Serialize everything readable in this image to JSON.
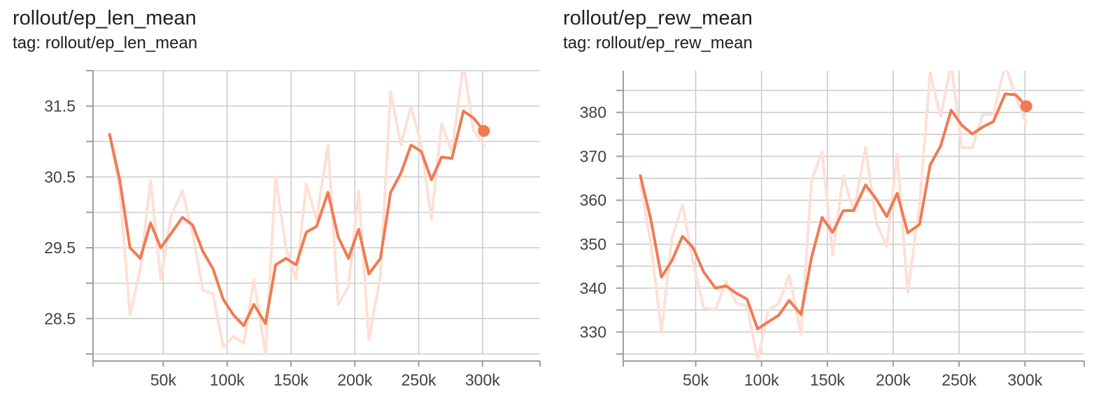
{
  "chart_data": [
    {
      "type": "line",
      "title": "rollout/ep_len_mean",
      "subtitle": "tag: rollout/ep_len_mean",
      "xlabel": "",
      "ylabel": "",
      "xlim": [
        -5000,
        345000
      ],
      "ylim": [
        28.0,
        32.0
      ],
      "x_ticks": [
        50000,
        100000,
        150000,
        200000,
        250000,
        300000
      ],
      "x_tick_labels": [
        "50k",
        "100k",
        "150k",
        "200k",
        "250k",
        "300k"
      ],
      "y_ticks": [
        28.5,
        29.5,
        30.5,
        31.5
      ],
      "y_tick_labels": [
        "28.5",
        "29.5",
        "30.5",
        "31.5"
      ],
      "grid": true,
      "colors": {
        "line": "#f07b52",
        "raw": "#fde0d6",
        "grid": "#cccccc",
        "axis": "#9e9e9e"
      },
      "series": [
        {
          "role": "raw",
          "x": [
            8000,
            16000,
            24000,
            32000,
            40000,
            48000,
            56000,
            65000,
            73000,
            81000,
            89000,
            97000,
            105000,
            113000,
            121000,
            130000,
            138000,
            146000,
            154000,
            162000,
            170000,
            179000,
            187000,
            195000,
            203000,
            211000,
            220000,
            228000,
            236000,
            244000,
            252000,
            260000,
            268000,
            276000,
            285000,
            293000,
            301000
          ],
          "y": [
            31.1,
            30.3,
            28.55,
            29.2,
            30.45,
            29.05,
            29.95,
            30.3,
            29.7,
            28.9,
            28.85,
            28.1,
            28.25,
            28.15,
            29.05,
            28.0,
            30.5,
            29.5,
            29.05,
            30.4,
            29.9,
            30.95,
            28.7,
            28.95,
            30.3,
            28.2,
            29.1,
            31.7,
            30.95,
            31.5,
            30.95,
            29.9,
            31.25,
            30.85,
            32.1,
            31.15,
            30.95
          ]
        },
        {
          "role": "smoothed",
          "x": [
            8000,
            16000,
            24000,
            32000,
            40000,
            48000,
            56000,
            65000,
            73000,
            81000,
            89000,
            97000,
            105000,
            113000,
            121000,
            130000,
            138000,
            146000,
            154000,
            162000,
            170000,
            179000,
            187000,
            195000,
            203000,
            211000,
            220000,
            228000,
            236000,
            244000,
            252000,
            260000,
            268000,
            276000,
            285000,
            293000,
            301000
          ],
          "y": [
            31.1,
            30.45,
            29.5,
            29.35,
            29.85,
            29.5,
            29.7,
            29.93,
            29.82,
            29.45,
            29.2,
            28.77,
            28.55,
            28.4,
            28.7,
            28.43,
            29.26,
            29.35,
            29.26,
            29.72,
            29.8,
            30.28,
            29.65,
            29.35,
            29.76,
            29.13,
            29.35,
            30.28,
            30.55,
            30.95,
            30.86,
            30.46,
            30.78,
            30.76,
            31.43,
            31.33,
            31.15
          ]
        }
      ]
    },
    {
      "type": "line",
      "title": "rollout/ep_rew_mean",
      "subtitle": "tag: rollout/ep_rew_mean",
      "xlabel": "",
      "ylabel": "",
      "xlim": [
        -5000,
        345000
      ],
      "ylim": [
        325,
        389.5
      ],
      "x_ticks": [
        50000,
        100000,
        150000,
        200000,
        250000,
        300000
      ],
      "x_tick_labels": [
        "50k",
        "100k",
        "150k",
        "200k",
        "250k",
        "300k"
      ],
      "y_ticks": [
        330,
        340,
        350,
        360,
        370,
        380
      ],
      "y_tick_labels": [
        "330",
        "340",
        "350",
        "360",
        "370",
        "380"
      ],
      "grid": true,
      "colors": {
        "line": "#f07b52",
        "raw": "#fde0d6",
        "grid": "#cccccc",
        "axis": "#9e9e9e"
      },
      "series": [
        {
          "role": "raw",
          "x": [
            8000,
            16000,
            24000,
            32000,
            40000,
            48000,
            56000,
            65000,
            73000,
            81000,
            89000,
            97000,
            105000,
            113000,
            121000,
            130000,
            138000,
            146000,
            154000,
            162000,
            170000,
            179000,
            187000,
            195000,
            203000,
            211000,
            220000,
            228000,
            236000,
            244000,
            252000,
            260000,
            268000,
            276000,
            285000,
            293000,
            301000
          ],
          "y": [
            364,
            350,
            330,
            351.5,
            359,
            346,
            335.5,
            335,
            341.5,
            336.5,
            336,
            323.5,
            335,
            336.5,
            343,
            329.5,
            364.5,
            371,
            347.5,
            365.5,
            357.5,
            372,
            355,
            349.5,
            370.5,
            339,
            359,
            389,
            379,
            391,
            372,
            372,
            379.5,
            379.5,
            391,
            383.5,
            377.5
          ]
        },
        {
          "role": "smoothed",
          "x": [
            8000,
            16000,
            24000,
            32000,
            40000,
            48000,
            56000,
            65000,
            73000,
            81000,
            89000,
            97000,
            105000,
            113000,
            121000,
            130000,
            138000,
            146000,
            154000,
            162000,
            170000,
            179000,
            187000,
            195000,
            203000,
            211000,
            220000,
            228000,
            236000,
            244000,
            252000,
            260000,
            268000,
            276000,
            285000,
            293000,
            301000
          ],
          "y": [
            365.6,
            355.6,
            342.5,
            346.3,
            351.8,
            349.2,
            343.7,
            340.0,
            340.5,
            338.8,
            337.5,
            330.7,
            332.3,
            333.8,
            337.2,
            334.0,
            347.0,
            356.1,
            352.7,
            357.6,
            357.7,
            363.5,
            360.3,
            356.3,
            361.6,
            352.6,
            354.5,
            368.0,
            372.4,
            380.5,
            377.1,
            375.1,
            376.7,
            377.9,
            384.2,
            384.0,
            381.4
          ]
        }
      ]
    }
  ]
}
